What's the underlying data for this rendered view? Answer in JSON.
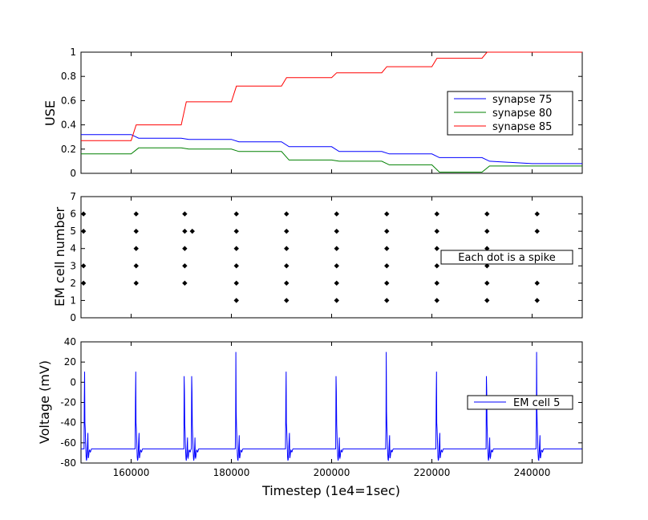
{
  "chart_data": [
    {
      "type": "line",
      "ylabel": "USE",
      "xlim": [
        150000,
        250000
      ],
      "ylim": [
        0,
        1
      ],
      "yticks": [
        "0",
        "0.2",
        "0.4",
        "0.6",
        "0.8",
        "1"
      ],
      "legend_position": "center-right",
      "series": [
        {
          "name": "synapse 75",
          "color": "#0000ff",
          "x": [
            150000,
            160000,
            161500,
            170000,
            171500,
            180000,
            181500,
            190000,
            191500,
            200000,
            201500,
            210000,
            211500,
            220000,
            221500,
            230000,
            231500,
            240000,
            250000
          ],
          "y": [
            0.32,
            0.32,
            0.29,
            0.29,
            0.28,
            0.28,
            0.26,
            0.26,
            0.22,
            0.22,
            0.18,
            0.18,
            0.16,
            0.16,
            0.13,
            0.13,
            0.1,
            0.08,
            0.08
          ]
        },
        {
          "name": "synapse 80",
          "color": "#008000",
          "x": [
            150000,
            160000,
            161500,
            170000,
            171500,
            180000,
            181500,
            190000,
            191500,
            200000,
            201500,
            210000,
            211500,
            220000,
            221500,
            230000,
            231500,
            240000,
            250000
          ],
          "y": [
            0.16,
            0.16,
            0.21,
            0.21,
            0.2,
            0.2,
            0.18,
            0.18,
            0.11,
            0.11,
            0.1,
            0.1,
            0.07,
            0.07,
            0.01,
            0.01,
            0.06,
            0.06,
            0.06
          ]
        },
        {
          "name": "synapse 85",
          "color": "#ff0000",
          "x": [
            150000,
            160000,
            161000,
            170000,
            171000,
            180000,
            181000,
            190000,
            191000,
            200000,
            201000,
            210000,
            211000,
            220000,
            221000,
            230000,
            231000,
            240000,
            250000
          ],
          "y": [
            0.27,
            0.27,
            0.4,
            0.4,
            0.59,
            0.59,
            0.72,
            0.72,
            0.79,
            0.79,
            0.83,
            0.83,
            0.88,
            0.88,
            0.95,
            0.95,
            1.0,
            1.0,
            1.0
          ]
        }
      ]
    },
    {
      "type": "scatter",
      "ylabel": "EM cell number",
      "xlim": [
        150000,
        250000
      ],
      "ylim": [
        0,
        7
      ],
      "yticks": [
        "0",
        "1",
        "2",
        "3",
        "4",
        "5",
        "6",
        "7"
      ],
      "annotation": "Each dot is a spike",
      "points": [
        [
          150500,
          6
        ],
        [
          150500,
          5
        ],
        [
          150500,
          3
        ],
        [
          150500,
          2
        ],
        [
          161000,
          6
        ],
        [
          161000,
          5
        ],
        [
          161000,
          4
        ],
        [
          161000,
          3
        ],
        [
          161000,
          2
        ],
        [
          170700,
          6
        ],
        [
          170700,
          5
        ],
        [
          170700,
          4
        ],
        [
          170700,
          3
        ],
        [
          170700,
          2
        ],
        [
          172200,
          5
        ],
        [
          181000,
          6
        ],
        [
          181000,
          5
        ],
        [
          181000,
          4
        ],
        [
          181000,
          3
        ],
        [
          181000,
          2
        ],
        [
          181000,
          1
        ],
        [
          191000,
          6
        ],
        [
          191000,
          5
        ],
        [
          191000,
          4
        ],
        [
          191000,
          3
        ],
        [
          191000,
          2
        ],
        [
          191000,
          1
        ],
        [
          201000,
          6
        ],
        [
          201000,
          5
        ],
        [
          201000,
          4
        ],
        [
          201000,
          3
        ],
        [
          201000,
          2
        ],
        [
          201000,
          1
        ],
        [
          211000,
          6
        ],
        [
          211000,
          5
        ],
        [
          211000,
          4
        ],
        [
          211000,
          3
        ],
        [
          211000,
          2
        ],
        [
          211000,
          1
        ],
        [
          221000,
          6
        ],
        [
          221000,
          5
        ],
        [
          221000,
          4
        ],
        [
          221000,
          3
        ],
        [
          221000,
          2
        ],
        [
          221000,
          1
        ],
        [
          231000,
          6
        ],
        [
          231000,
          5
        ],
        [
          231000,
          4
        ],
        [
          231000,
          3
        ],
        [
          231000,
          2
        ],
        [
          231000,
          1
        ],
        [
          241000,
          6
        ],
        [
          241000,
          5
        ],
        [
          241000,
          2
        ],
        [
          241000,
          1
        ]
      ]
    },
    {
      "type": "line",
      "ylabel": "Voltage (mV)",
      "xlabel": "Timestep (1e4=1sec)",
      "xlim": [
        150000,
        250000
      ],
      "ylim": [
        -80,
        40
      ],
      "yticks": [
        "-80",
        "-60",
        "-40",
        "-20",
        "0",
        "20",
        "40"
      ],
      "xticks": [
        "160000",
        "180000",
        "200000",
        "220000",
        "240000"
      ],
      "legend_position": "center-right",
      "resting_potential": -66,
      "spike_peak": 30,
      "spike_times": [
        150700,
        160900,
        170600,
        172100,
        180900,
        190900,
        200900,
        210900,
        220900,
        230900,
        240900
      ],
      "series": [
        {
          "name": "EM cell 5",
          "color": "#0000ff"
        }
      ]
    }
  ]
}
